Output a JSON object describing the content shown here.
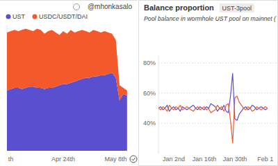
{
  "chart_data": [
    {
      "type": "area",
      "stacked": true,
      "annotation": "@mhonkasalo",
      "categories": [
        null,
        "th",
        null,
        null,
        null,
        null,
        null,
        null,
        null,
        null,
        null,
        null,
        null,
        null,
        null,
        "Apr 24th",
        null,
        null,
        null,
        null,
        null,
        null,
        null,
        null,
        null,
        null,
        null,
        null,
        null,
        "May 8th",
        null,
        null,
        null
      ],
      "series": [
        {
          "name": "UST",
          "color": "#5a4fcf",
          "values": [
            48,
            49,
            50,
            50,
            49,
            50,
            51,
            51,
            50,
            50,
            49,
            50,
            50,
            51,
            52,
            53,
            53,
            54,
            55,
            56,
            57,
            58,
            58,
            59,
            59,
            60,
            60,
            61,
            62,
            58,
            40,
            45,
            44
          ]
        },
        {
          "name": "USDC/USDT/DAI",
          "color": "#f4592b",
          "values": [
            46,
            46,
            46,
            45,
            47,
            47,
            45,
            44,
            47,
            46,
            44,
            45,
            46,
            43,
            40,
            42,
            40,
            42,
            39,
            39,
            39,
            37,
            36,
            37,
            36,
            34,
            35,
            33,
            31,
            30,
            12,
            5,
            4
          ]
        }
      ],
      "ylim": [
        0,
        100
      ],
      "tick_labels": "x",
      "legend": "top",
      "grid": false
    },
    {
      "type": "line",
      "title": "Balance proportion",
      "annotation": "UST-3pool",
      "subtitle": "Pool balance in wormhole UST pool on mainnet (",
      "categories": [
        null,
        null,
        null,
        null,
        null,
        null,
        null,
        "Jan 2nd",
        null,
        null,
        null,
        null,
        null,
        null,
        null,
        null,
        null,
        null,
        null,
        null,
        null,
        "Jan 16th",
        null,
        null,
        null,
        null,
        null,
        null,
        null,
        null,
        null,
        null,
        null,
        null,
        null,
        "Jan 30th",
        null,
        null,
        null,
        null,
        null,
        null,
        null,
        null,
        null,
        null,
        null,
        null,
        null,
        "Feb 1",
        null
      ],
      "series": [
        {
          "color": "#5a4fcf",
          "values": [
            50,
            51,
            49,
            50,
            52,
            48,
            50,
            51,
            49,
            50,
            48,
            51,
            50,
            49,
            50,
            51,
            52,
            50,
            49,
            51,
            50,
            49,
            51,
            50,
            53,
            52,
            51,
            48,
            50,
            49,
            52,
            48,
            47,
            58,
            73,
            43,
            42,
            46,
            48,
            50,
            51,
            49,
            50,
            52,
            51,
            49,
            50,
            51,
            50,
            49,
            50
          ]
        },
        {
          "color": "#f4592b",
          "values": [
            50,
            49,
            51,
            50,
            48,
            52,
            50,
            49,
            51,
            50,
            52,
            49,
            50,
            51,
            50,
            49,
            48,
            50,
            51,
            49,
            50,
            51,
            49,
            50,
            47,
            48,
            49,
            52,
            50,
            51,
            48,
            52,
            53,
            42,
            27,
            57,
            58,
            54,
            52,
            50,
            49,
            51,
            50,
            48,
            49,
            51,
            50,
            49,
            50,
            51,
            50
          ]
        }
      ],
      "ylim": [
        20,
        85
      ],
      "yticks": [
        {
          "value": 40,
          "label": "40%"
        },
        {
          "value": 60,
          "label": "60%"
        },
        {
          "value": 80,
          "label": "80%"
        }
      ],
      "grid": true
    }
  ]
}
